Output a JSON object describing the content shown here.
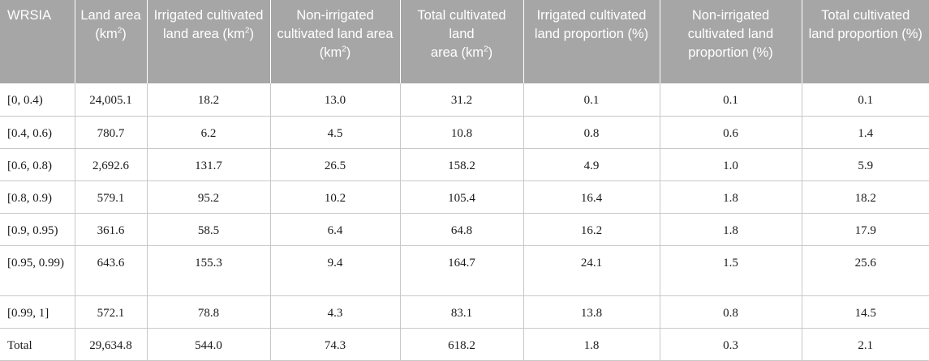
{
  "table": {
    "columns": [
      {
        "label": "WRSIA",
        "unit": ""
      },
      {
        "label": "Land area",
        "unit": "(km2)"
      },
      {
        "label": "Irrigated cultivated land area",
        "unit": "(km2)"
      },
      {
        "label": "Non-irrigated cultivated land area",
        "unit": "(km2)"
      },
      {
        "label": "Total cultivated land area",
        "unit": "(km2)"
      },
      {
        "label": "Irrigated cultivated land proportion (%)",
        "unit": ""
      },
      {
        "label": "Non-irrigated cultivated land proportion (%)",
        "unit": ""
      },
      {
        "label": "Total cultivated land proportion (%)",
        "unit": ""
      }
    ],
    "rows": [
      [
        "[0, 0.4)",
        "24,005.1",
        "18.2",
        "13.0",
        "31.2",
        "0.1",
        "0.1",
        "0.1"
      ],
      [
        "[0.4, 0.6)",
        "780.7",
        "6.2",
        "4.5",
        "10.8",
        "0.8",
        "0.6",
        "1.4"
      ],
      [
        "[0.6, 0.8)",
        "2,692.6",
        "131.7",
        "26.5",
        "158.2",
        "4.9",
        "1.0",
        "5.9"
      ],
      [
        "[0.8, 0.9)",
        "579.1",
        "95.2",
        "10.2",
        "105.4",
        "16.4",
        "1.8",
        "18.2"
      ],
      [
        "[0.9, 0.95)",
        "361.6",
        "58.5",
        "6.4",
        "64.8",
        "16.2",
        "1.8",
        "17.9"
      ],
      [
        "[0.95, 0.99)",
        "643.6",
        "155.3",
        "9.4",
        "164.7",
        "24.1",
        "1.5",
        "25.6"
      ],
      [
        "[0.99, 1]",
        "572.1",
        "78.8",
        "4.3",
        "83.1",
        "13.8",
        "0.8",
        "14.5"
      ],
      [
        "Total",
        "29,634.8",
        "544.0",
        "74.3",
        "618.2",
        "1.8",
        "0.3",
        "2.1"
      ]
    ]
  }
}
